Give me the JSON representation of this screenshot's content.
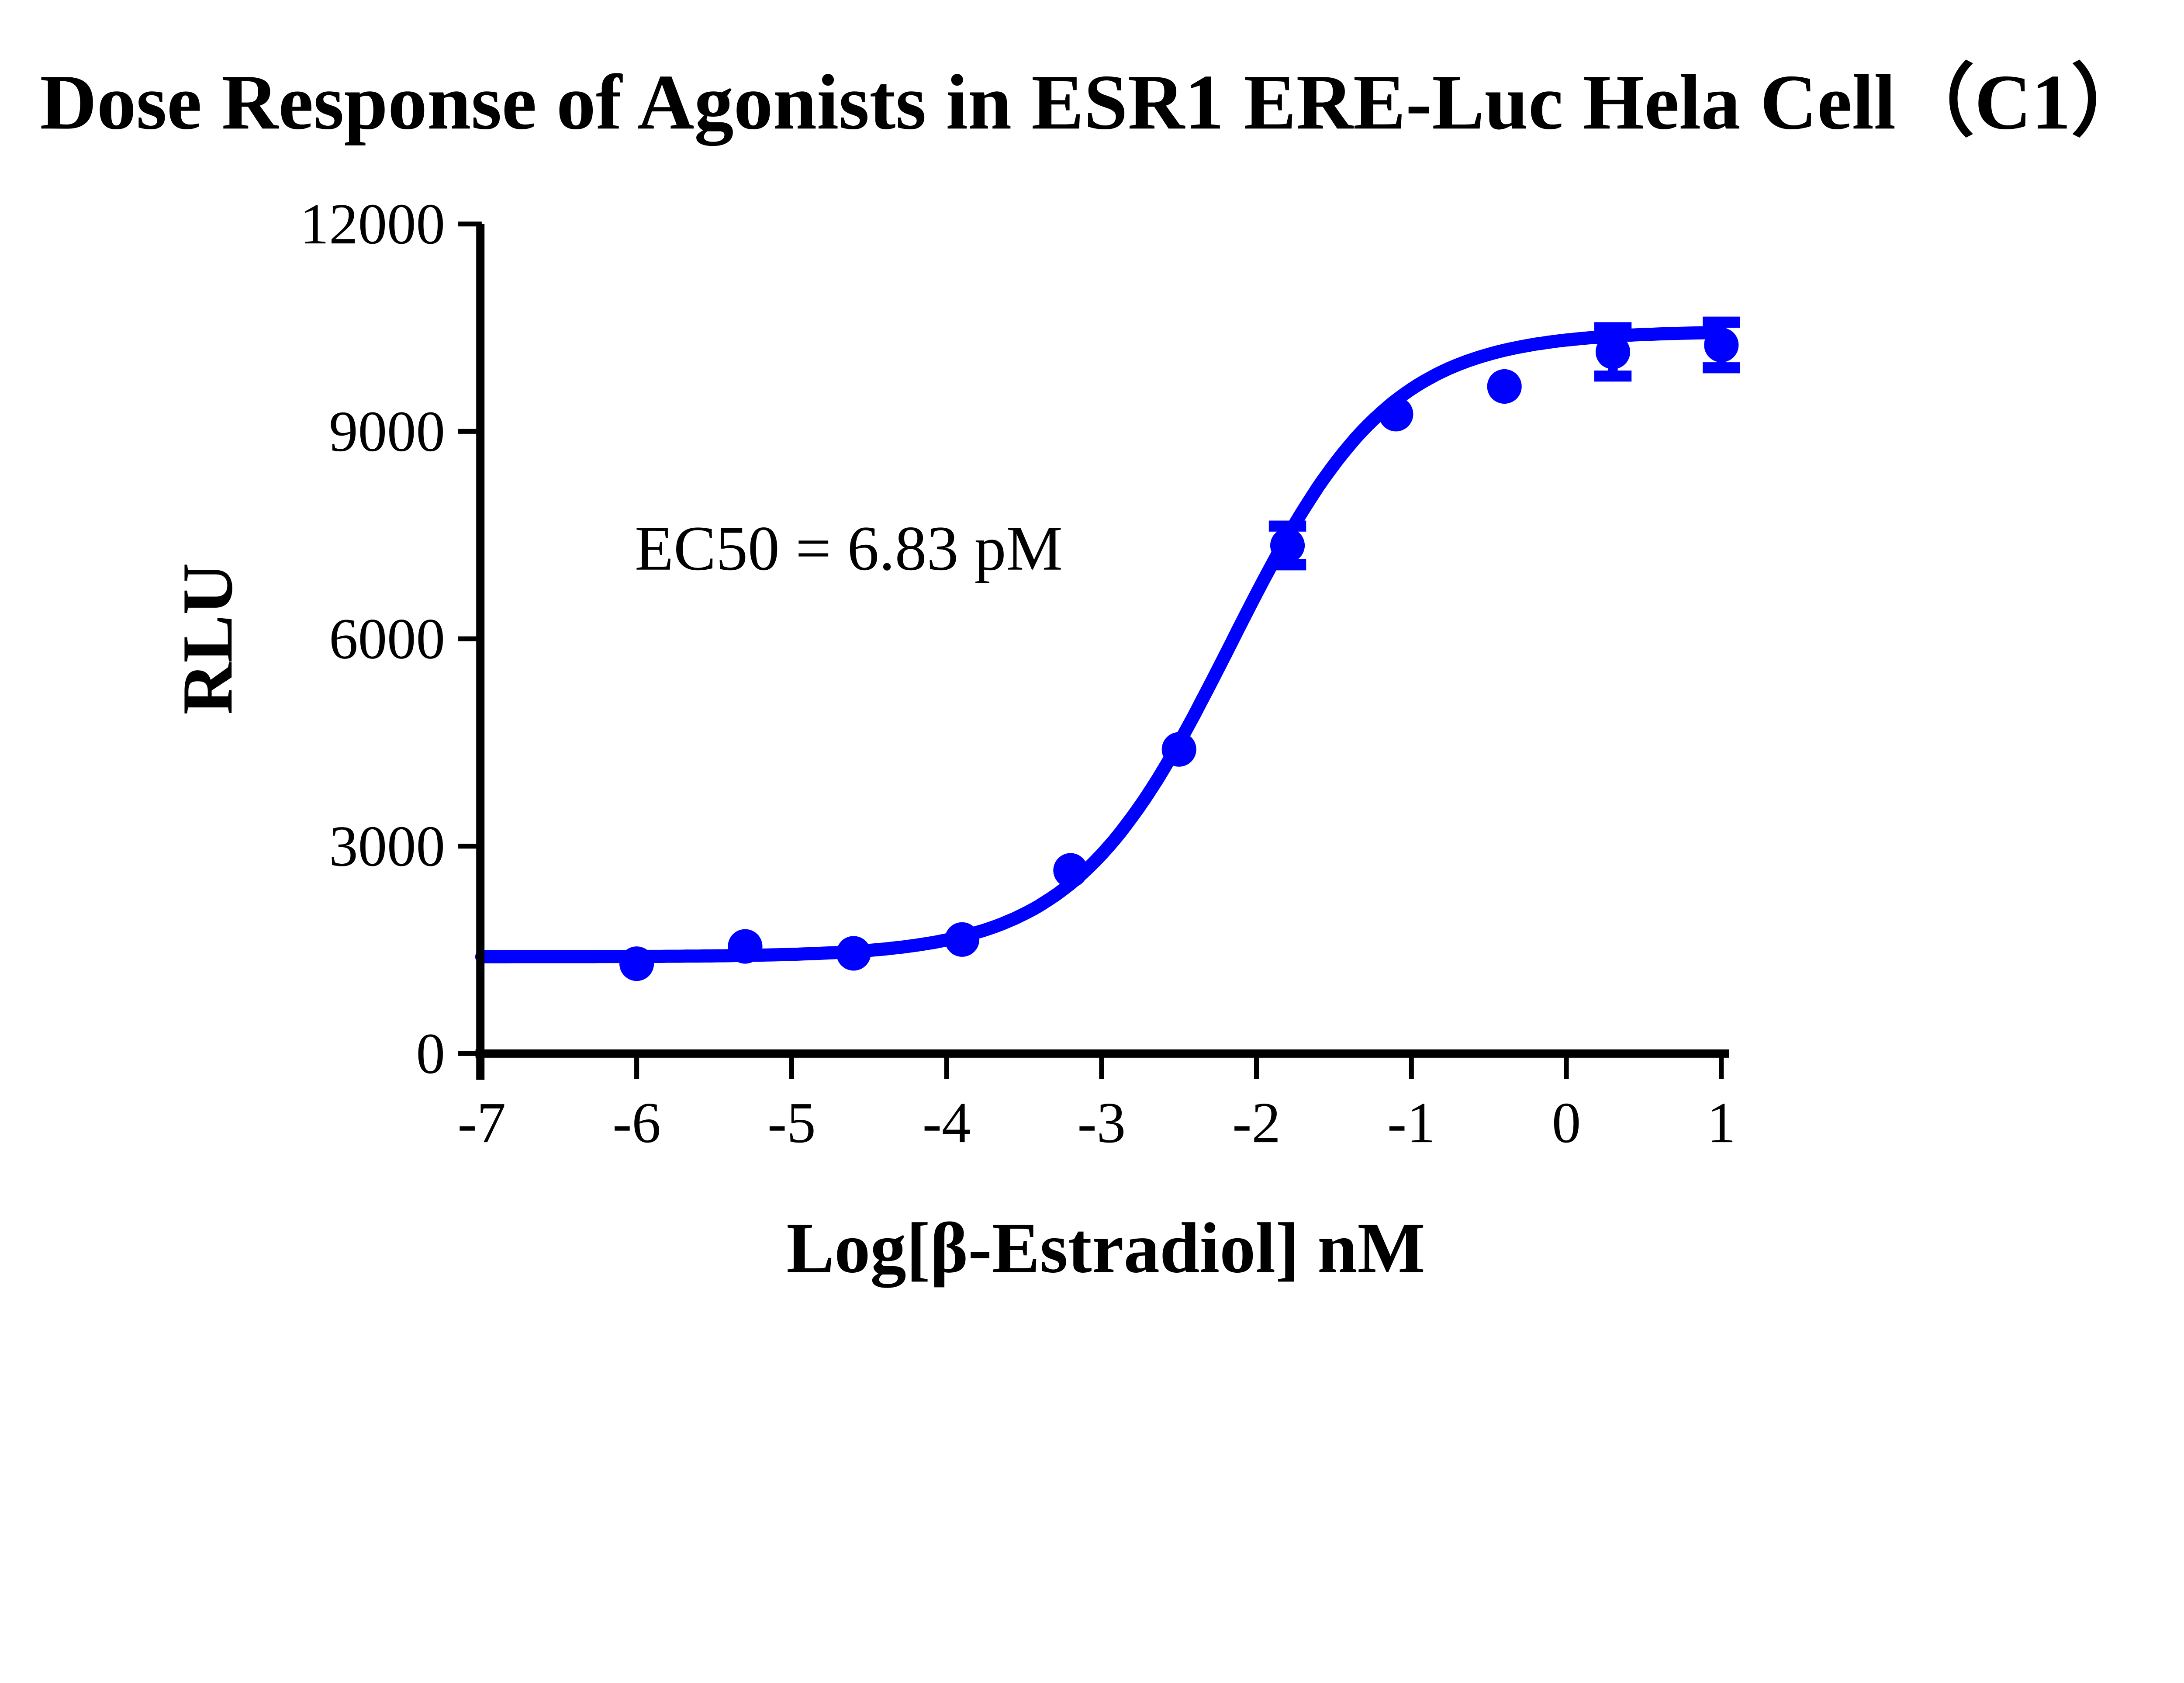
{
  "chart_data": {
    "type": "scatter",
    "title": "Dose Response of Agonists in ESR1 ERE-Luc Hela Cell（C1）",
    "xlabel": "Log[β-Estradiol] nM",
    "ylabel": "RLU",
    "annotation": "EC50 = 6.83 pM",
    "x_ticks": [
      -7,
      -6,
      -5,
      -4,
      -3,
      -2,
      -1,
      0,
      1
    ],
    "y_ticks": [
      0,
      3000,
      6000,
      9000,
      12000
    ],
    "xlim": [
      -7,
      1
    ],
    "ylim": [
      0,
      12000
    ],
    "grid": false,
    "legend": "none",
    "accent_color": "#0000FF",
    "axis_color": "#000000",
    "series": [
      {
        "name": "β-Estradiol",
        "marker": "circle",
        "color": "#0000FF",
        "x": [
          -6.0,
          -5.3,
          -4.6,
          -3.9,
          -3.2,
          -2.5,
          -1.8,
          -1.1,
          -0.4,
          0.3,
          1.0
        ],
        "y": [
          1300,
          1550,
          1450,
          1650,
          2650,
          4400,
          7350,
          9250,
          9650,
          10150,
          10250
        ],
        "y_err": [
          0,
          0,
          0,
          0,
          0,
          0,
          280,
          0,
          0,
          350,
          330
        ]
      }
    ],
    "fit_curve": {
      "model": "4PL",
      "bottom": 1400,
      "top": 10450,
      "log_ec50": -2.166,
      "hill": 0.85,
      "x_start": -7,
      "x_end": 1.0
    }
  }
}
